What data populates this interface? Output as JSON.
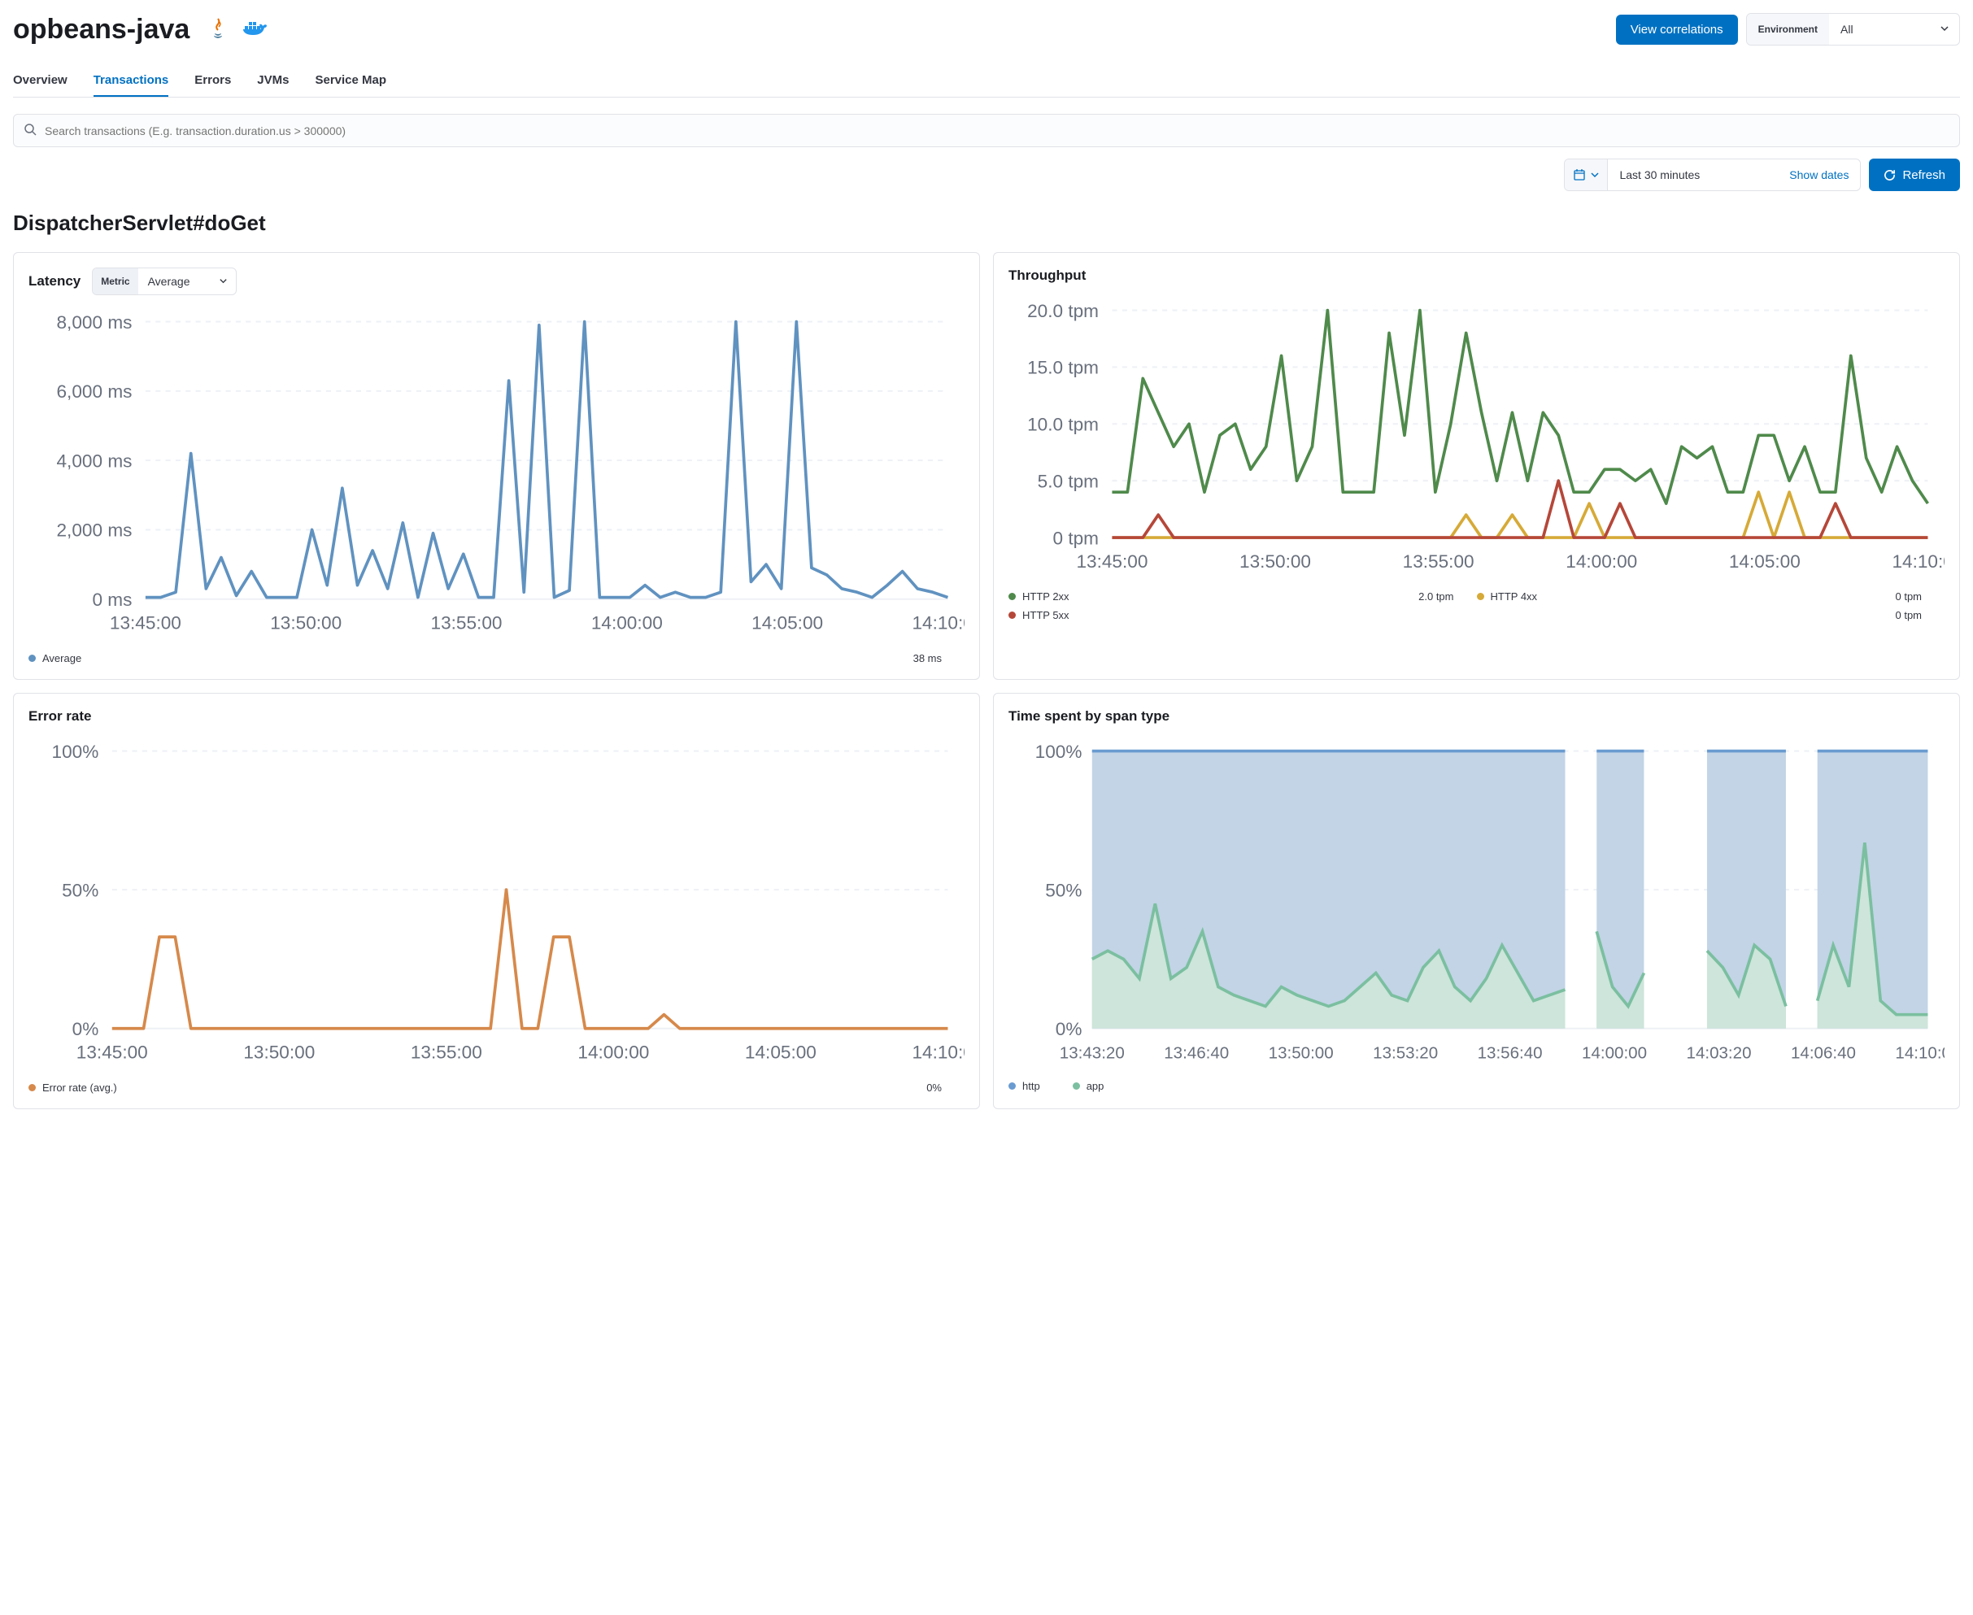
{
  "header": {
    "title": "opbeans-java",
    "view_correlations": "View correlations",
    "env_label": "Environment",
    "env_value": "All"
  },
  "tabs": [
    {
      "id": "overview",
      "label": "Overview",
      "active": false
    },
    {
      "id": "transactions",
      "label": "Transactions",
      "active": true
    },
    {
      "id": "errors",
      "label": "Errors",
      "active": false
    },
    {
      "id": "jvms",
      "label": "JVMs",
      "active": false
    },
    {
      "id": "service-map",
      "label": "Service Map",
      "active": false
    }
  ],
  "search": {
    "placeholder": "Search transactions (E.g. transaction.duration.us > 300000)"
  },
  "date": {
    "range": "Last 30 minutes",
    "show_dates": "Show dates",
    "refresh": "Refresh"
  },
  "sub_title": "DispatcherServlet#doGet",
  "colors": {
    "blue": "#5e8fc1",
    "blue_line": "#6092c0",
    "orange": "#d6894b",
    "green": "#4f8a4b",
    "yellow": "#d6aa38",
    "red": "#b54739",
    "app_green": "#7bbfa0",
    "http_blue": "#6a9bd1",
    "grid": "#eef1f6",
    "axis": "#98a2b3",
    "text_muted": "#69707d",
    "area_blue": "#c2d4e6",
    "area_green": "#cde5da"
  },
  "latency": {
    "title": "Latency",
    "metric_label": "Metric",
    "metric_value": "Average",
    "type": "line",
    "y_ticks": [
      "0 ms",
      "2,000 ms",
      "4,000 ms",
      "6,000 ms",
      "8,000 ms"
    ],
    "y_max": 8000,
    "x_ticks": [
      "13:45:00",
      "13:50:00",
      "13:55:00",
      "14:00:00",
      "14:05:00",
      "14:10:00"
    ],
    "series": [
      {
        "name": "Average",
        "color": "#6092c0",
        "points": [
          50,
          50,
          200,
          4200,
          300,
          1200,
          100,
          800,
          50,
          50,
          50,
          2000,
          400,
          3200,
          400,
          1400,
          300,
          2200,
          50,
          1900,
          300,
          1300,
          50,
          50,
          6300,
          200,
          7900,
          50,
          250,
          9200,
          50,
          50,
          50,
          400,
          50,
          200,
          50,
          50,
          200,
          8800,
          500,
          1000,
          300,
          9200,
          900,
          700,
          300,
          200,
          50,
          400,
          800,
          300,
          200,
          50
        ]
      }
    ],
    "legend": [
      {
        "swatch": "#6092c0",
        "label": "Average",
        "value": "38 ms"
      }
    ]
  },
  "throughput": {
    "title": "Throughput",
    "type": "line",
    "y_ticks": [
      "0 tpm",
      "5.0 tpm",
      "10.0 tpm",
      "15.0 tpm",
      "20.0 tpm"
    ],
    "y_max": 20,
    "x_ticks": [
      "13:45:00",
      "13:50:00",
      "13:55:00",
      "14:00:00",
      "14:05:00",
      "14:10:00"
    ],
    "series": [
      {
        "name": "HTTP 2xx",
        "color": "#4f8a4b",
        "points": [
          4,
          4,
          14,
          11,
          8,
          10,
          4,
          9,
          10,
          6,
          8,
          16,
          5,
          8,
          20,
          4,
          4,
          4,
          18,
          9,
          20,
          4,
          10,
          18,
          11,
          5,
          11,
          5,
          11,
          9,
          4,
          4,
          6,
          6,
          5,
          6,
          3,
          8,
          7,
          8,
          4,
          4,
          9,
          9,
          5,
          8,
          4,
          4,
          16,
          7,
          4,
          8,
          5,
          3
        ]
      },
      {
        "name": "HTTP 4xx",
        "color": "#d6aa38",
        "points": [
          0,
          0,
          0,
          0,
          0,
          0,
          0,
          0,
          0,
          0,
          0,
          0,
          0,
          0,
          0,
          0,
          0,
          0,
          0,
          0,
          0,
          0,
          0,
          2,
          0,
          0,
          2,
          0,
          0,
          0,
          0,
          3,
          0,
          0,
          0,
          0,
          0,
          0,
          0,
          0,
          0,
          0,
          4,
          0,
          4,
          0,
          0,
          0,
          0,
          0,
          0,
          0,
          0,
          0
        ]
      },
      {
        "name": "HTTP 5xx",
        "color": "#b54739",
        "points": [
          0,
          0,
          0,
          2,
          0,
          0,
          0,
          0,
          0,
          0,
          0,
          0,
          0,
          0,
          0,
          0,
          0,
          0,
          0,
          0,
          0,
          0,
          0,
          0,
          0,
          0,
          0,
          0,
          0,
          5,
          0,
          0,
          0,
          3,
          0,
          0,
          0,
          0,
          0,
          0,
          0,
          0,
          0,
          0,
          0,
          0,
          0,
          3,
          0,
          0,
          0,
          0,
          0,
          0
        ]
      }
    ],
    "legend": [
      {
        "swatch": "#4f8a4b",
        "label": "HTTP 2xx",
        "value": "2.0 tpm"
      },
      {
        "swatch": "#d6aa38",
        "label": "HTTP 4xx",
        "value": "0 tpm"
      },
      {
        "swatch": "#b54739",
        "label": "HTTP 5xx",
        "value": "0 tpm"
      }
    ]
  },
  "error_rate": {
    "title": "Error rate",
    "type": "line",
    "y_ticks": [
      "0%",
      "50%",
      "100%"
    ],
    "y_max": 100,
    "x_ticks": [
      "13:45:00",
      "13:50:00",
      "13:55:00",
      "14:00:00",
      "14:05:00",
      "14:10:00"
    ],
    "series": [
      {
        "name": "Error rate (avg.)",
        "color": "#d6894b",
        "points": [
          0,
          0,
          0,
          33,
          33,
          0,
          0,
          0,
          0,
          0,
          0,
          0,
          0,
          0,
          0,
          0,
          0,
          0,
          0,
          0,
          0,
          0,
          0,
          0,
          0,
          50,
          0,
          0,
          33,
          33,
          0,
          0,
          0,
          0,
          0,
          5,
          0,
          0,
          0,
          0,
          0,
          0,
          0,
          0,
          0,
          0,
          0,
          0,
          0,
          0,
          0,
          0,
          0,
          0
        ]
      }
    ],
    "legend": [
      {
        "swatch": "#d6894b",
        "label": "Error rate (avg.)",
        "value": "0%"
      }
    ]
  },
  "span": {
    "title": "Time spent by span type",
    "type": "area-stacked",
    "y_ticks": [
      "0%",
      "50%",
      "100%"
    ],
    "y_max": 100,
    "x_ticks": [
      "13:43:20",
      "13:46:40",
      "13:50:00",
      "13:53:20",
      "13:56:40",
      "14:00:00",
      "14:03:20",
      "14:06:40",
      "14:10:00"
    ],
    "series": [
      {
        "name": "http",
        "color": "#6a9bd1",
        "area": "#c2d4e6"
      },
      {
        "name": "app",
        "color": "#7bbfa0",
        "area": "#cde5da",
        "points": [
          25,
          28,
          25,
          18,
          45,
          18,
          22,
          35,
          15,
          12,
          10,
          8,
          15,
          12,
          10,
          8,
          10,
          15,
          20,
          12,
          10,
          22,
          28,
          15,
          10,
          18,
          30,
          20,
          10,
          12,
          14,
          null,
          35,
          15,
          8,
          20,
          null,
          10,
          null,
          28,
          22,
          12,
          30,
          25,
          8,
          null,
          10,
          30,
          15,
          67,
          10,
          5,
          5,
          5
        ]
      }
    ],
    "gaps": [
      [
        31,
        32
      ],
      [
        36,
        37
      ],
      [
        38,
        39
      ],
      [
        45,
        46
      ]
    ],
    "legend": [
      {
        "swatch": "#6a9bd1",
        "label": "http"
      },
      {
        "swatch": "#7bbfa0",
        "label": "app"
      }
    ]
  }
}
